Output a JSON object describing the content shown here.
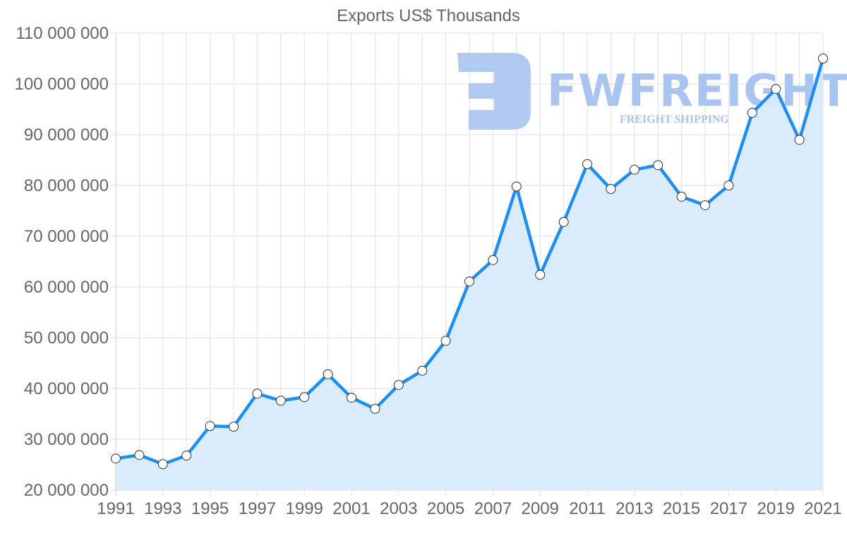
{
  "chart_data": {
    "type": "area",
    "title": "Exports US$ Thousands",
    "xlabel": "",
    "ylabel": "",
    "x": [
      1991,
      1992,
      1993,
      1994,
      1995,
      1996,
      1997,
      1998,
      1999,
      2000,
      2001,
      2002,
      2003,
      2004,
      2005,
      2006,
      2007,
      2008,
      2009,
      2010,
      2011,
      2012,
      2013,
      2014,
      2015,
      2016,
      2017,
      2018,
      2019,
      2020,
      2021
    ],
    "series": [
      {
        "name": "Exports US$ Thousands",
        "values": [
          26200000,
          26900000,
          25100000,
          26800000,
          32600000,
          32500000,
          39000000,
          37600000,
          38300000,
          42800000,
          38200000,
          36000000,
          40700000,
          43500000,
          49400000,
          61100000,
          65300000,
          79800000,
          62400000,
          72800000,
          84200000,
          79300000,
          83100000,
          84000000,
          77800000,
          76100000,
          80000000,
          94300000,
          99000000,
          89000000,
          105000000
        ]
      }
    ],
    "ylim": [
      20000000,
      110000000
    ],
    "yticks": [
      20000000,
      30000000,
      40000000,
      50000000,
      60000000,
      70000000,
      80000000,
      90000000,
      100000000,
      110000000
    ],
    "ytick_labels": [
      "20 000 000",
      "30 000 000",
      "40 000 000",
      "50 000 000",
      "60 000 000",
      "70 000 000",
      "80 000 000",
      "90 000 000",
      "100 000 000",
      "110 000 000"
    ],
    "xtick_labels": [
      "1991",
      "1993",
      "1995",
      "1997",
      "1999",
      "2001",
      "2003",
      "2005",
      "2007",
      "2009",
      "2011",
      "2013",
      "2015",
      "2017",
      "2019",
      "2021"
    ],
    "grid": true,
    "legend": "none",
    "colors": {
      "line": "#1e8ff0",
      "fill": "#d8ebfc",
      "marker_fill": "#ffffff",
      "marker_stroke": "#333333",
      "grid": "#e0e0e0",
      "text": "#666666"
    }
  },
  "watermark": {
    "brand": "FWFREIGHT",
    "tagline": "FREIGHT SHIPPING",
    "color": "#a9c4f0"
  }
}
